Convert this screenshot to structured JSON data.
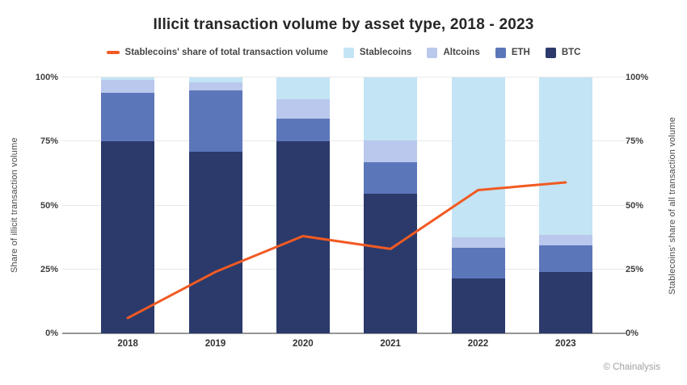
{
  "title": "Illicit transaction volume by asset type, 2018 - 2023",
  "footer": {
    "credit": "© Chainalysis"
  },
  "axes": {
    "left_label": "Share of illicit transaction volume",
    "right_label": "Stablecoins' share of all transaction volume",
    "tick_labels": [
      "0%",
      "25%",
      "50%",
      "75%",
      "100%"
    ]
  },
  "legend": [
    {
      "label": "Stablecoins' share of total transaction volume",
      "type": "line",
      "color": "#f15a22"
    },
    {
      "label": "Stablecoins",
      "type": "swatch",
      "color": "#c3e4f4"
    },
    {
      "label": "Altcoins",
      "type": "swatch",
      "color": "#b9c8ec"
    },
    {
      "label": "ETH",
      "type": "swatch",
      "color": "#5c76ba"
    },
    {
      "label": "BTC",
      "type": "swatch",
      "color": "#2b3a6b"
    }
  ],
  "colors": {
    "grid": "#e8e8e8",
    "axis_line": "#969696",
    "accent_orange": "#f15a22"
  },
  "chart_data": {
    "type": "bar",
    "subtype": "100%-stacked bars with line overlay",
    "title": "Illicit transaction volume by asset type, 2018 - 2023",
    "categories": [
      "2018",
      "2019",
      "2020",
      "2021",
      "2022",
      "2023"
    ],
    "series": [
      {
        "name": "BTC",
        "color": "#2b3a6b",
        "values": [
          75,
          71,
          75,
          54.5,
          21.5,
          24
        ]
      },
      {
        "name": "ETH",
        "color": "#5c76ba",
        "values": [
          19,
          24,
          9,
          12.5,
          12,
          10.5
        ]
      },
      {
        "name": "Altcoins",
        "color": "#b9c8ec",
        "values": [
          5,
          3,
          7.5,
          8.5,
          4,
          4
        ]
      },
      {
        "name": "Stablecoins",
        "color": "#c3e4f4",
        "values": [
          1,
          2,
          8.5,
          24.5,
          62.5,
          61.5
        ]
      }
    ],
    "line_series": {
      "name": "Stablecoins' share of total transaction volume",
      "color": "#f15a22",
      "values": [
        6,
        24,
        38,
        33,
        56,
        59
      ]
    },
    "ylabel_left": "Share of illicit transaction volume",
    "ylabel_right": "Stablecoins' share of all transaction volume",
    "ylim": [
      0,
      100
    ],
    "yticks": [
      0,
      25,
      50,
      75,
      100
    ],
    "grid": true,
    "legend_position": "top"
  }
}
